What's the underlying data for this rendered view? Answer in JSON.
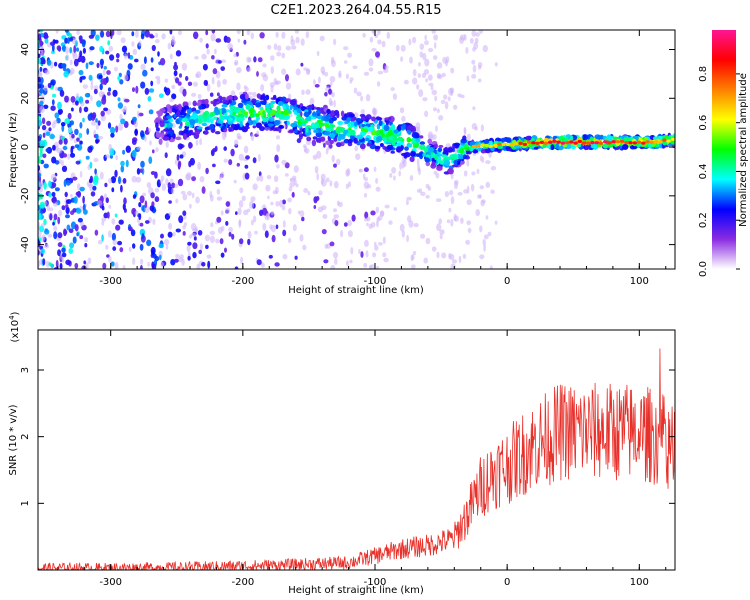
{
  "title": "C2E1.2023.264.04.55.R15",
  "colors": {
    "snr_line": "#e8302a",
    "spectrogram_core": "#6a00e8",
    "spectrogram_halo": "#c9a8f7"
  },
  "chart_data": [
    {
      "type": "heatmap",
      "name": "spectrogram",
      "xlabel": "Height of straight line (km)",
      "ylabel": "Frequency (Hz)",
      "xlim": [
        -355,
        127
      ],
      "ylim": [
        -50,
        48
      ],
      "x_ticks": [
        -300,
        -200,
        -100,
        0,
        100
      ],
      "y_ticks": [
        -40,
        -20,
        0,
        20,
        40
      ],
      "grid": false,
      "colorbar": {
        "label": "Normalized spectral amplitude",
        "range": [
          0.0,
          0.98
        ],
        "ticks": [
          "0.0",
          "0.2",
          "0.4",
          "0.6",
          "0.8"
        ],
        "colormap": [
          "#ffffff",
          "#8a2be2",
          "#0000ff",
          "#00ffff",
          "#00ff00",
          "#ffff00",
          "#ff8000",
          "#ff0000",
          "#ff1493"
        ]
      },
      "ridge": [
        {
          "x": -260,
          "f": 9,
          "amp": 0.35
        },
        {
          "x": -230,
          "f": 12,
          "amp": 0.45
        },
        {
          "x": -200,
          "f": 14,
          "amp": 0.5
        },
        {
          "x": -170,
          "f": 14,
          "amp": 0.5
        },
        {
          "x": -150,
          "f": 10,
          "amp": 0.5
        },
        {
          "x": -120,
          "f": 7,
          "amp": 0.45
        },
        {
          "x": -100,
          "f": 6,
          "amp": 0.5
        },
        {
          "x": -80,
          "f": 4,
          "amp": 0.5
        },
        {
          "x": -60,
          "f": -2,
          "amp": 0.45
        },
        {
          "x": -45,
          "f": -6,
          "amp": 0.45
        },
        {
          "x": -30,
          "f": 0,
          "amp": 0.5
        },
        {
          "x": 0,
          "f": 1,
          "amp": 0.6
        },
        {
          "x": 30,
          "f": 2,
          "amp": 0.75
        },
        {
          "x": 60,
          "f": 2,
          "amp": 0.8
        },
        {
          "x": 90,
          "f": 2,
          "amp": 0.75
        },
        {
          "x": 110,
          "f": 2,
          "amp": 0.7
        },
        {
          "x": 127,
          "f": 3,
          "amp": 0.6
        }
      ]
    },
    {
      "type": "line",
      "name": "snr",
      "xlabel": "Height of straight line (km)",
      "ylabel": "SNR (10 * v/v)",
      "y_multiplier": "(x10^4)",
      "xlim": [
        -355,
        127
      ],
      "ylim": [
        0,
        3.6
      ],
      "x_ticks": [
        -300,
        -200,
        -100,
        0,
        100
      ],
      "y_ticks": [
        1,
        2,
        3
      ],
      "grid": false,
      "envelope": {
        "x": [
          -355,
          -300,
          -250,
          -200,
          -160,
          -120,
          -100,
          -80,
          -60,
          -40,
          -30,
          -20,
          -10,
          0,
          20,
          40,
          60,
          80,
          100,
          115,
          127
        ],
        "y": [
          0.02,
          0.02,
          0.03,
          0.05,
          0.07,
          0.1,
          0.2,
          0.3,
          0.35,
          0.45,
          0.8,
          1.2,
          1.4,
          1.5,
          1.8,
          2.0,
          2.0,
          2.0,
          2.0,
          1.9,
          1.8
        ]
      }
    }
  ]
}
